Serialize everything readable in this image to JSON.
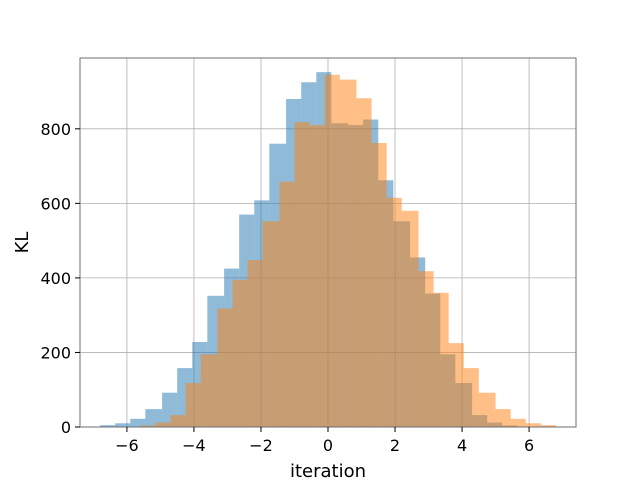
{
  "chart_data": {
    "type": "bar",
    "title": "",
    "xlabel": "iteration",
    "ylabel": "KL",
    "xlim": [
      -7.4,
      7.4
    ],
    "ylim": [
      0,
      990
    ],
    "grid": true,
    "legend": "none",
    "xticks": [
      -6,
      -4,
      -2,
      0,
      2,
      4,
      6
    ],
    "xtick_labels": [
      "−6",
      "−4",
      "−2",
      "0",
      "2",
      "4",
      "6"
    ],
    "yticks": [
      0,
      200,
      400,
      600,
      800
    ],
    "ytick_labels": [
      "0",
      "200",
      "400",
      "600",
      "800"
    ],
    "series": [
      {
        "color": "#1f77b4",
        "opacity": 0.5,
        "bins": [
          {
            "x0": -6.8,
            "x1": -6.35,
            "value": 5
          },
          {
            "x0": -6.35,
            "x1": -5.9,
            "value": 10
          },
          {
            "x0": -5.9,
            "x1": -5.45,
            "value": 22
          },
          {
            "x0": -5.45,
            "x1": -4.95,
            "value": 48
          },
          {
            "x0": -4.95,
            "x1": -4.5,
            "value": 92
          },
          {
            "x0": -4.5,
            "x1": -4.05,
            "value": 158
          },
          {
            "x0": -4.05,
            "x1": -3.6,
            "value": 228
          },
          {
            "x0": -3.6,
            "x1": -3.1,
            "value": 352
          },
          {
            "x0": -3.1,
            "x1": -2.65,
            "value": 425
          },
          {
            "x0": -2.65,
            "x1": -2.2,
            "value": 570
          },
          {
            "x0": -2.2,
            "x1": -1.75,
            "value": 608
          },
          {
            "x0": -1.75,
            "x1": -1.25,
            "value": 760
          },
          {
            "x0": -1.25,
            "x1": -0.8,
            "value": 880
          },
          {
            "x0": -0.8,
            "x1": -0.35,
            "value": 925
          },
          {
            "x0": -0.35,
            "x1": 0.1,
            "value": 952
          },
          {
            "x0": 0.1,
            "x1": 0.6,
            "value": 815
          },
          {
            "x0": 0.6,
            "x1": 1.05,
            "value": 810
          },
          {
            "x0": 1.05,
            "x1": 1.5,
            "value": 825
          },
          {
            "x0": 1.5,
            "x1": 1.95,
            "value": 662
          },
          {
            "x0": 1.95,
            "x1": 2.45,
            "value": 552
          },
          {
            "x0": 2.45,
            "x1": 2.9,
            "value": 455
          },
          {
            "x0": 2.9,
            "x1": 3.35,
            "value": 358
          },
          {
            "x0": 3.35,
            "x1": 3.8,
            "value": 195
          },
          {
            "x0": 3.8,
            "x1": 4.3,
            "value": 118
          },
          {
            "x0": 4.3,
            "x1": 4.75,
            "value": 32
          },
          {
            "x0": 4.75,
            "x1": 5.2,
            "value": 12
          },
          {
            "x0": 5.2,
            "x1": 5.65,
            "value": 4
          }
        ]
      },
      {
        "color": "#ff7f0e",
        "opacity": 0.5,
        "bins": [
          {
            "x0": -5.6,
            "x1": -5.15,
            "value": 4
          },
          {
            "x0": -5.15,
            "x1": -4.7,
            "value": 12
          },
          {
            "x0": -4.7,
            "x1": -4.25,
            "value": 32
          },
          {
            "x0": -4.25,
            "x1": -3.8,
            "value": 118
          },
          {
            "x0": -3.8,
            "x1": -3.3,
            "value": 195
          },
          {
            "x0": -3.3,
            "x1": -2.85,
            "value": 318
          },
          {
            "x0": -2.85,
            "x1": -2.4,
            "value": 395
          },
          {
            "x0": -2.4,
            "x1": -1.95,
            "value": 448
          },
          {
            "x0": -1.95,
            "x1": -1.45,
            "value": 552
          },
          {
            "x0": -1.45,
            "x1": -1.0,
            "value": 658
          },
          {
            "x0": -1.0,
            "x1": -0.55,
            "value": 818
          },
          {
            "x0": -0.55,
            "x1": -0.1,
            "value": 810
          },
          {
            "x0": -0.1,
            "x1": 0.35,
            "value": 945
          },
          {
            "x0": 0.35,
            "x1": 0.85,
            "value": 932
          },
          {
            "x0": 0.85,
            "x1": 1.3,
            "value": 882
          },
          {
            "x0": 1.3,
            "x1": 1.75,
            "value": 762
          },
          {
            "x0": 1.75,
            "x1": 2.2,
            "value": 615
          },
          {
            "x0": 2.2,
            "x1": 2.7,
            "value": 580
          },
          {
            "x0": 2.7,
            "x1": 3.15,
            "value": 418
          },
          {
            "x0": 3.15,
            "x1": 3.6,
            "value": 360
          },
          {
            "x0": 3.6,
            "x1": 4.05,
            "value": 225
          },
          {
            "x0": 4.05,
            "x1": 4.5,
            "value": 158
          },
          {
            "x0": 4.5,
            "x1": 5.0,
            "value": 92
          },
          {
            "x0": 5.0,
            "x1": 5.45,
            "value": 48
          },
          {
            "x0": 5.45,
            "x1": 5.9,
            "value": 22
          },
          {
            "x0": 5.9,
            "x1": 6.35,
            "value": 10
          },
          {
            "x0": 6.35,
            "x1": 6.8,
            "value": 5
          }
        ]
      }
    ]
  }
}
